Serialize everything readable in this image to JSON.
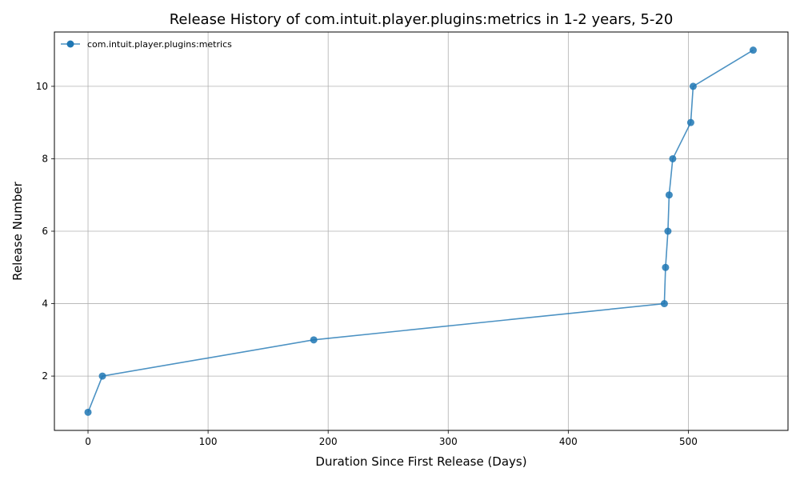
{
  "chart_data": {
    "type": "line",
    "title": "Release History of com.intuit.player.plugins:metrics in 1-2 years, 5-20",
    "xlabel": "Duration Since First Release (Days)",
    "ylabel": "Release Number",
    "xlim": [
      -28,
      583
    ],
    "ylim": [
      0.5,
      11.5
    ],
    "xticks": [
      0,
      100,
      200,
      300,
      400,
      500
    ],
    "yticks": [
      2,
      4,
      6,
      8,
      10
    ],
    "grid": true,
    "legend_position": "top-left",
    "series": [
      {
        "name": "com.intuit.player.plugins:metrics",
        "color": "#1f77b4",
        "marker": "circle",
        "x": [
          0,
          12,
          188,
          480,
          481,
          483,
          484,
          487,
          502,
          504,
          554
        ],
        "y": [
          1,
          2,
          3,
          4,
          5,
          6,
          7,
          8,
          9,
          10,
          11
        ]
      }
    ]
  }
}
